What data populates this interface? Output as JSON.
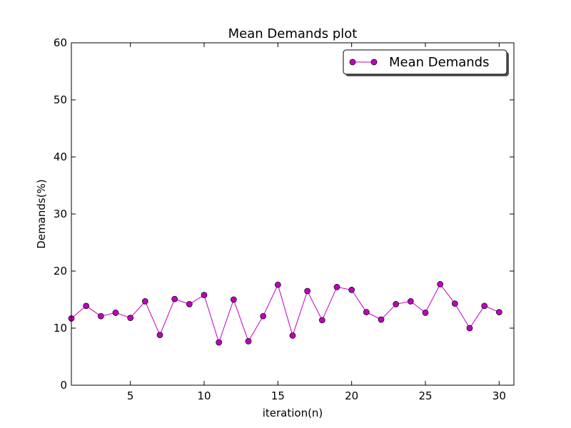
{
  "chart_data": {
    "type": "line",
    "title": "Mean Demands plot",
    "xlabel": "iteration(n)",
    "ylabel": "Demands(%)",
    "xlim": [
      1,
      31
    ],
    "ylim": [
      0,
      60
    ],
    "xticks": [
      5,
      10,
      15,
      20,
      25,
      30
    ],
    "yticks": [
      0,
      10,
      20,
      30,
      40,
      50,
      60
    ],
    "grid": false,
    "legend_position": "top-right",
    "series": [
      {
        "name": "Mean Demands",
        "color": "#bf00bf",
        "marker": "circle",
        "x": [
          1,
          2,
          3,
          4,
          5,
          6,
          7,
          8,
          9,
          10,
          11,
          12,
          13,
          14,
          15,
          16,
          17,
          18,
          19,
          20,
          21,
          22,
          23,
          24,
          25,
          26,
          27,
          28,
          29,
          30
        ],
        "values": [
          11.7,
          13.9,
          12.1,
          12.7,
          11.8,
          14.7,
          8.8,
          15.1,
          14.2,
          15.8,
          7.5,
          15.0,
          7.7,
          12.1,
          17.6,
          8.7,
          16.5,
          11.4,
          17.2,
          16.7,
          12.8,
          11.5,
          14.2,
          14.7,
          12.7,
          17.7,
          14.3,
          10.0,
          13.9,
          12.8
        ]
      }
    ]
  }
}
